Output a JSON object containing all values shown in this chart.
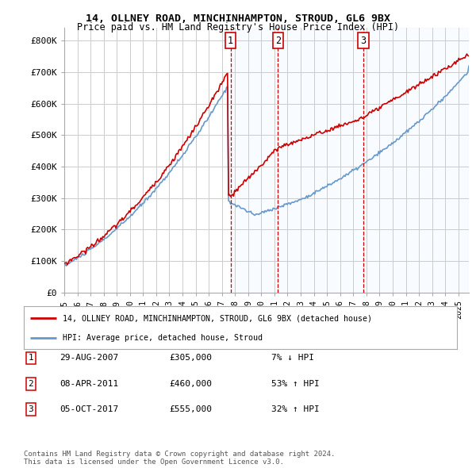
{
  "title1": "14, OLLNEY ROAD, MINCHINHAMPTON, STROUD, GL6 9BX",
  "title2": "Price paid vs. HM Land Registry's House Price Index (HPI)",
  "ylabel_ticks": [
    "£0",
    "£100K",
    "£200K",
    "£300K",
    "£400K",
    "£500K",
    "£600K",
    "£700K",
    "£800K"
  ],
  "ytick_values": [
    0,
    100000,
    200000,
    300000,
    400000,
    500000,
    600000,
    700000,
    800000
  ],
  "ylim": [
    0,
    840000
  ],
  "xlim_start": 1995.0,
  "xlim_end": 2025.8,
  "sale_dates": [
    2007.66,
    2011.27,
    2017.76
  ],
  "sale_prices": [
    305000,
    460000,
    555000
  ],
  "sale_labels": [
    "1",
    "2",
    "3"
  ],
  "legend_line1": "14, OLLNEY ROAD, MINCHINHAMPTON, STROUD, GL6 9BX (detached house)",
  "legend_line2": "HPI: Average price, detached house, Stroud",
  "table_rows": [
    [
      "1",
      "29-AUG-2007",
      "£305,000",
      "7% ↓ HPI"
    ],
    [
      "2",
      "08-APR-2011",
      "£460,000",
      "53% ↑ HPI"
    ],
    [
      "3",
      "05-OCT-2017",
      "£555,000",
      "32% ↑ HPI"
    ]
  ],
  "footer": "Contains HM Land Registry data © Crown copyright and database right 2024.\nThis data is licensed under the Open Government Licence v3.0.",
  "price_color": "#cc0000",
  "hpi_color": "#6699cc",
  "highlight_bg": "#ddeeff",
  "vline_color": "#cc0000",
  "grid_color": "#cccccc",
  "background_color": "#ffffff"
}
